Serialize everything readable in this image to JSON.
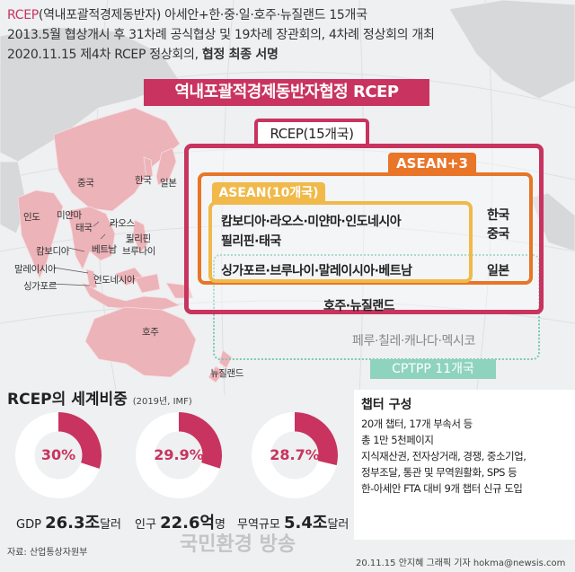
{
  "header": {
    "line1_accent": "RCEP",
    "line1_rest": "(역내포괄적경제동반자) 아세안+한·중·일·호주·뉴질랜드 15개국",
    "line2": "2013.5월 협상개시 후 31차례 공식협상 및 19차례 장관회의, 4차례 정상회의 개최",
    "line3_plain": "2020.11.15 제4차 RCEP 정상회의, ",
    "line3_bold": "협정 최종 서명"
  },
  "map_labels": {
    "china": "중국",
    "korea": "한국",
    "japan": "일본",
    "india": "인도",
    "myanmar": "미얀마",
    "laos": "라오스",
    "thailand": "태국",
    "philippines": "필리핀",
    "vietnam": "베트남",
    "cambodia": "캄보디아",
    "brunei": "브루나이",
    "malaysia": "말레이시아",
    "singapore": "싱가포르",
    "indonesia": "인도네시아",
    "australia": "호주",
    "new_zealand": "뉴질랜드"
  },
  "diagram": {
    "title": "역내포괄적경제동반자협정 RCEP",
    "rcep_tab": "RCEP(15개국)",
    "asean3_tab": "ASEAN+3",
    "asean_tab": "ASEAN(10개국)",
    "asean_members_line1": "캄보디아·라오스·미얀마·인도네시아",
    "asean_members_line2": "필리핀·태국",
    "asean_members_line3": "싱가포르·브루나이·말레이시아·베트남",
    "plus3_korea": "한국",
    "plus3_china": "중국",
    "plus3_japan": "일본",
    "anz": "호주·뉴질랜드",
    "cptpp_others": "페루·칠레·캐나다·멕시코",
    "cptpp_tab": "CPTPP 11개국"
  },
  "world_share": {
    "title": "RCEP의 세계비중",
    "subtitle": "(2019년, IMF)",
    "items": [
      {
        "pct_label": "30%",
        "value": 30,
        "label": "GDP",
        "amount": "26.3조",
        "unit": "달러"
      },
      {
        "pct_label": "29.9%",
        "value": 29.9,
        "label": "인구",
        "amount": "22.6억",
        "unit": "명"
      },
      {
        "pct_label": "28.7%",
        "value": 28.7,
        "label": "무역규모",
        "amount": "5.4조",
        "unit": "달러"
      }
    ],
    "colors": {
      "share": "#c8345f",
      "rest": "#ffffff"
    }
  },
  "chapters": {
    "title": "챕터 구성",
    "lines": [
      "20개 챕터, 17개 부속서 등",
      "총 1만 5천페이지",
      "지식재산권, 전자상거래, 경쟁, 중소기업,",
      "정부조달, 통관 및 무역원활화, SPS 등",
      "한-아세안 FTA 대비 9개 챕터 신규 도입"
    ]
  },
  "footer": {
    "source": "자료: 산업통상자원부",
    "credit": "20.11.15 안지혜 그래픽 기자  hokma@newsis.com",
    "watermark": "국민환경 방송"
  }
}
